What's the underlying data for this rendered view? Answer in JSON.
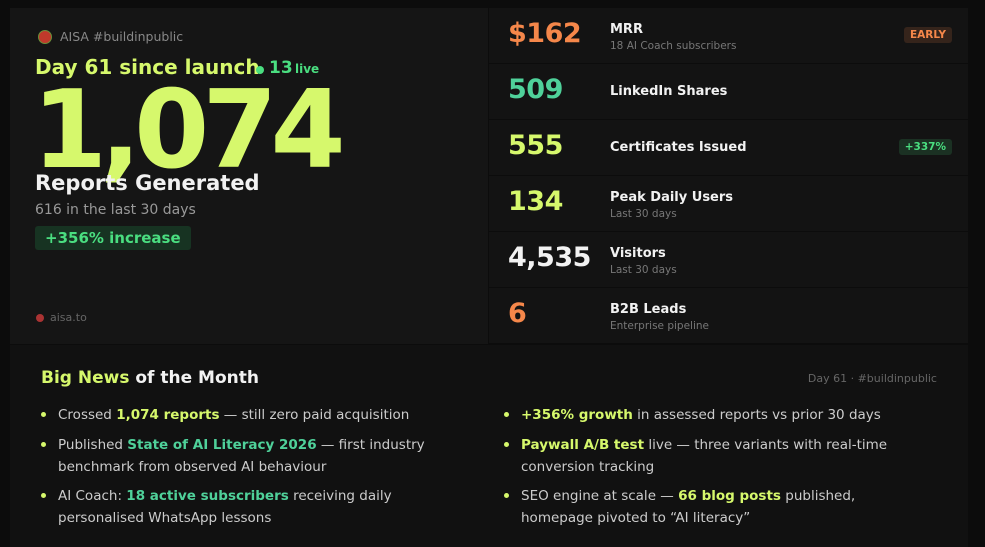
{
  "header": {
    "brand": "AISA #buildinpublic"
  },
  "hero": {
    "day": "Day 61 since launch",
    "live_count": "13",
    "live_label": "live",
    "big_number": "1,074",
    "label": "Reports Generated",
    "sub": "616 in the last 30 days",
    "badge": "+356% increase",
    "footer": "aisa.to"
  },
  "metrics": [
    {
      "value": "$162",
      "color": "#f5874a",
      "label": "MRR",
      "sub": "18 AI Coach subscribers",
      "badge": "EARLY",
      "badge_color": "#f5874a"
    },
    {
      "value": "509",
      "color": "#4fd19a",
      "label": "LinkedIn Shares"
    },
    {
      "value": "555",
      "color": "#d6f86c",
      "label": "Certificates Issued",
      "badge": "+337%",
      "badge_color": "#4ade80"
    },
    {
      "value": "134",
      "color": "#d6f86c",
      "label": "Peak Daily Users",
      "sub": "Last 30 days"
    },
    {
      "value": "4,535",
      "color": "#f2f2f2",
      "label": "Visitors",
      "sub": "Last 30 days"
    },
    {
      "value": "6",
      "color": "#f5874a",
      "label": "B2B Leads",
      "sub": "Enterprise pipeline"
    }
  ],
  "news": {
    "title_highlight": "Big News",
    "title_rest": "of the Month",
    "meta": "Day 61 · #buildinpublic",
    "columns": [
      [
        [
          {
            "text": "Crossed "
          },
          {
            "text": "1,074 reports",
            "color": "#d6f86c"
          },
          {
            "text": " — still zero paid acquisition"
          }
        ],
        [
          {
            "text": "Published "
          },
          {
            "text": "State of AI Literacy 2026",
            "color": "#4fd19a"
          },
          {
            "text": " — first industry benchmark from observed AI behaviour"
          }
        ],
        [
          {
            "text": "AI Coach: "
          },
          {
            "text": "18 active subscribers",
            "color": "#4fd19a"
          },
          {
            "text": " receiving daily personalised WhatsApp lessons"
          }
        ]
      ],
      [
        [
          {
            "text": "+356% growth",
            "color": "#d6f86c"
          },
          {
            "text": " in assessed reports vs prior 30 days"
          }
        ],
        [
          {
            "text": "Paywall A/B test",
            "color": "#d6f86c"
          },
          {
            "text": " live — three variants with real-time conversion tracking"
          }
        ],
        [
          {
            "text": "SEO engine at scale — "
          },
          {
            "text": "66 blog posts",
            "color": "#d6f86c"
          },
          {
            "text": " published, homepage pivoted to “AI literacy”"
          }
        ]
      ]
    ]
  }
}
